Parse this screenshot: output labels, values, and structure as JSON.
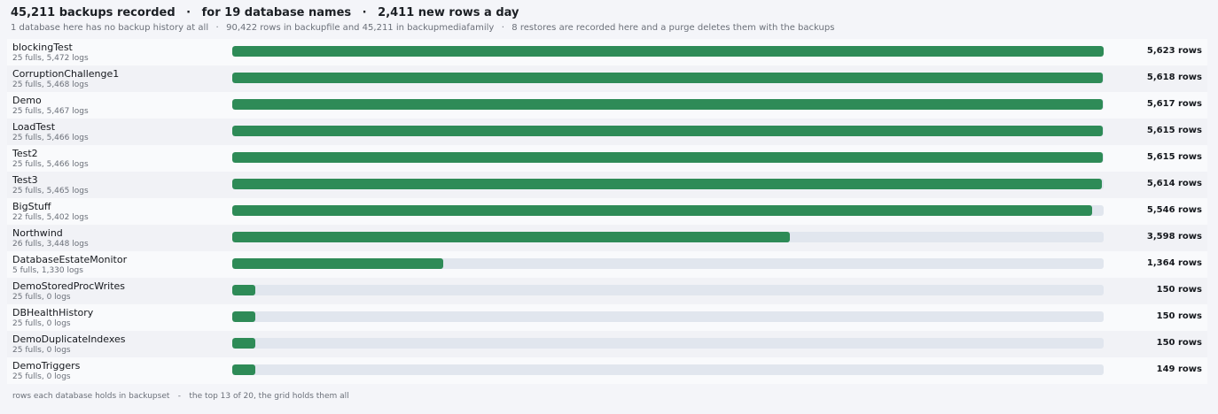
{
  "headline": {
    "backups": "45,211 backups recorded",
    "names": "for 19 database names",
    "rate": "2,411 new rows a day",
    "separator": "·"
  },
  "subline": {
    "no_history": "1 database here has no backup history at all",
    "rows": "90,422 rows in backupfile and 45,211 in backupmediafamily",
    "restores": "8 restores are recorded here and a purge deletes them with the backups",
    "separator": "·"
  },
  "colors": {
    "bar": "#2e8b57",
    "track": "#e1e6ee"
  },
  "bar_scale_max_rows": 5623,
  "databases": [
    {
      "name": "blockingTest",
      "detail": "25 fulls, 5,472 logs",
      "rows": 5623,
      "count_label": "5,623 rows"
    },
    {
      "name": "CorruptionChallenge1",
      "detail": "25 fulls, 5,468 logs",
      "rows": 5618,
      "count_label": "5,618 rows"
    },
    {
      "name": "Demo",
      "detail": "25 fulls, 5,467 logs",
      "rows": 5617,
      "count_label": "5,617 rows"
    },
    {
      "name": "LoadTest",
      "detail": "25 fulls, 5,466 logs",
      "rows": 5615,
      "count_label": "5,615 rows"
    },
    {
      "name": "Test2",
      "detail": "25 fulls, 5,466 logs",
      "rows": 5615,
      "count_label": "5,615 rows"
    },
    {
      "name": "Test3",
      "detail": "25 fulls, 5,465 logs",
      "rows": 5614,
      "count_label": "5,614 rows"
    },
    {
      "name": "BigStuff",
      "detail": "22 fulls, 5,402 logs",
      "rows": 5546,
      "count_label": "5,546 rows"
    },
    {
      "name": "Northwind",
      "detail": "26 fulls, 3,448 logs",
      "rows": 3598,
      "count_label": "3,598 rows"
    },
    {
      "name": "DatabaseEstateMonitor",
      "detail": "5 fulls, 1,330 logs",
      "rows": 1364,
      "count_label": "1,364 rows"
    },
    {
      "name": "DemoStoredProcWrites",
      "detail": "25 fulls, 0 logs",
      "rows": 150,
      "count_label": "150 rows"
    },
    {
      "name": "DBHealthHistory",
      "detail": "25 fulls, 0 logs",
      "rows": 150,
      "count_label": "150 rows"
    },
    {
      "name": "DemoDuplicateIndexes",
      "detail": "25 fulls, 0 logs",
      "rows": 150,
      "count_label": "150 rows"
    },
    {
      "name": "DemoTriggers",
      "detail": "25 fulls, 0 logs",
      "rows": 149,
      "count_label": "149 rows"
    }
  ],
  "footer": {
    "caption": "rows each database holds in backupset",
    "separator": "-",
    "note": "the top 13 of 20, the grid holds them all"
  }
}
